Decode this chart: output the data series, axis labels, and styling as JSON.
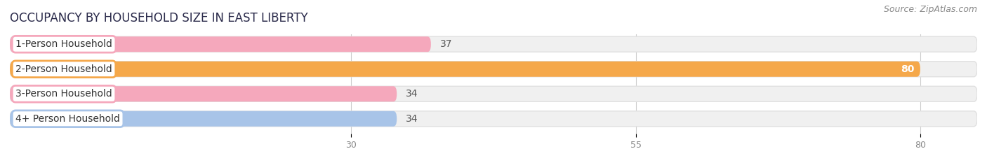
{
  "title": "OCCUPANCY BY HOUSEHOLD SIZE IN EAST LIBERTY",
  "source": "Source: ZipAtlas.com",
  "categories": [
    "1-Person Household",
    "2-Person Household",
    "3-Person Household",
    "4+ Person Household"
  ],
  "values": [
    37,
    80,
    34,
    34
  ],
  "bar_colors": [
    "#f5a8bc",
    "#f5a84a",
    "#f5a8bc",
    "#a8c4e8"
  ],
  "x_ticks": [
    30,
    55,
    80
  ],
  "x_min": 0,
  "x_max": 85,
  "background_color": "#ffffff",
  "bar_bg_color": "#f0f0f0",
  "bar_bg_border": "#e0e0e0",
  "title_fontsize": 12,
  "source_fontsize": 9,
  "label_fontsize": 10,
  "value_fontsize": 10,
  "title_color": "#2a2a4a",
  "source_color": "#888888",
  "value_color_dark": "#555555",
  "value_color_light": "#ffffff",
  "tick_color": "#888888"
}
